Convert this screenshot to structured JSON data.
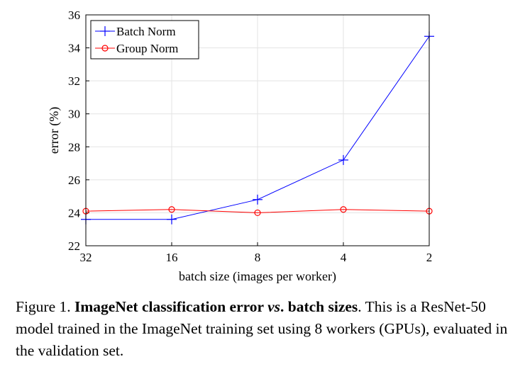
{
  "chart_data": {
    "type": "line",
    "categories": [
      "32",
      "16",
      "8",
      "4",
      "2"
    ],
    "xlabel": "batch size (images per worker)",
    "ylabel": "error (%)",
    "ylim": [
      22,
      36
    ],
    "yticks": [
      "22",
      "24",
      "26",
      "28",
      "30",
      "32",
      "34",
      "36"
    ],
    "grid": true,
    "legend_position": "top-left",
    "series": [
      {
        "name": "Batch Norm",
        "values": [
          23.6,
          23.6,
          24.8,
          27.2,
          34.7
        ],
        "color": "#0000ff",
        "marker": "plus"
      },
      {
        "name": "Group Norm",
        "values": [
          24.1,
          24.2,
          24.0,
          24.2,
          24.1
        ],
        "color": "#ff0000",
        "marker": "circle"
      }
    ]
  },
  "caption": {
    "prefix": "Figure 1. ",
    "bold1": "ImageNet classification error ",
    "italic": "vs",
    "bold2": ". batch sizes",
    "rest": ". This is a ResNet-50 model trained in the ImageNet training set using 8 workers (GPUs), evaluated in the validation set."
  }
}
